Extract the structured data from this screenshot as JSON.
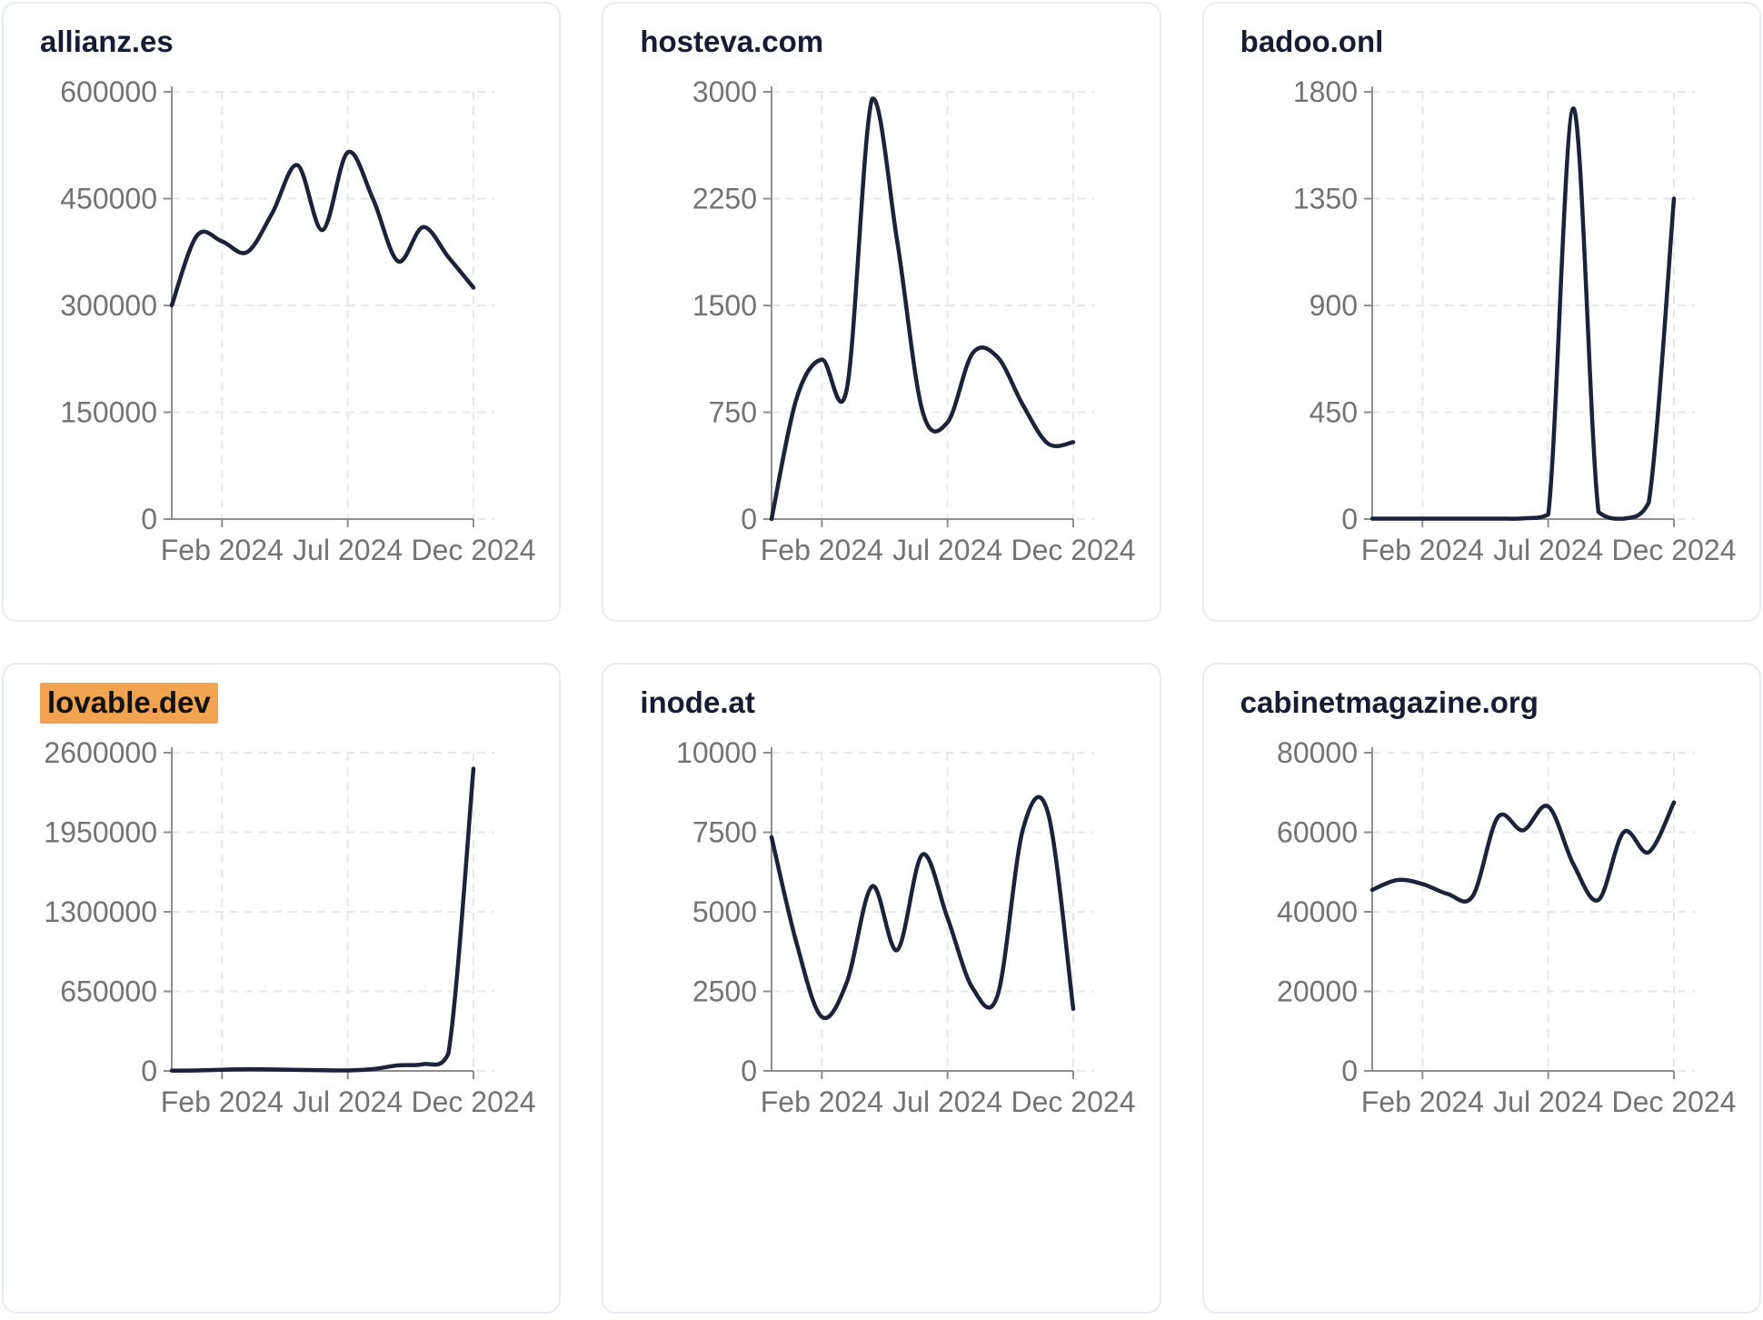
{
  "page": {
    "background": "#ffffff",
    "layout": "3x2 grid of domain traffic cards"
  },
  "styles": {
    "line_color": "#1c2237",
    "title_color": "#171c33",
    "axis_color": "#8f8f8f",
    "tick_label_color": "#737373",
    "grid_color": "#e7e7e7",
    "card_border": "#e9ebf2",
    "highlight_bg": "#f0a351",
    "highlight_text": "#111111"
  },
  "x_months": [
    "Dec 2023",
    "Jan 2024",
    "Feb 2024",
    "Mar 2024",
    "Apr 2024",
    "May 2024",
    "Jun 2024",
    "Jul 2024",
    "Aug 2024",
    "Sep 2024",
    "Oct 2024",
    "Nov 2024",
    "Dec 2024"
  ],
  "chart_data": [
    {
      "type": "line",
      "domain": "allianz.es",
      "highlighted": false,
      "title": "allianz.es",
      "x": [
        "Dec 2023",
        "Jan 2024",
        "Feb 2024",
        "Mar 2024",
        "Apr 2024",
        "May 2024",
        "Jun 2024",
        "Jul 2024",
        "Aug 2024",
        "Sep 2024",
        "Oct 2024",
        "Nov 2024",
        "Dec 2024"
      ],
      "values": [
        300000,
        398000,
        390000,
        375000,
        430000,
        497000,
        406000,
        515000,
        450000,
        362000,
        410000,
        368000,
        325000
      ],
      "y_ticks": [
        0,
        150000,
        300000,
        450000,
        600000
      ],
      "ylim": [
        0,
        600000
      ],
      "x_ticks": [
        {
          "month": 2,
          "label": "Feb 2024"
        },
        {
          "month": 7,
          "label": "Jul 2024"
        },
        {
          "month": 12,
          "label": "Dec 2024"
        }
      ],
      "grid": "dashed"
    },
    {
      "type": "line",
      "domain": "hosteva.com",
      "highlighted": false,
      "title": "hosteva.com",
      "x": [
        "Dec 2023",
        "Jan 2024",
        "Feb 2024",
        "Mar 2024",
        "Apr 2024",
        "May 2024",
        "Jun 2024",
        "Jul 2024",
        "Aug 2024",
        "Sep 2024",
        "Oct 2024",
        "Nov 2024",
        "Dec 2024"
      ],
      "values": [
        0,
        850,
        1120,
        920,
        2950,
        1950,
        760,
        680,
        1165,
        1135,
        800,
        530,
        540
      ],
      "y_ticks": [
        0,
        750,
        1500,
        2250,
        3000
      ],
      "ylim": [
        0,
        3000
      ],
      "x_ticks": [
        {
          "month": 2,
          "label": "Feb 2024"
        },
        {
          "month": 7,
          "label": "Jul 2024"
        },
        {
          "month": 12,
          "label": "Dec 2024"
        }
      ],
      "grid": "dashed"
    },
    {
      "type": "line",
      "domain": "badoo.onl",
      "highlighted": false,
      "title": "badoo.onl",
      "x": [
        "Dec 2023",
        "Jan 2024",
        "Feb 2024",
        "Mar 2024",
        "Apr 2024",
        "May 2024",
        "Jun 2024",
        "Jul 2024",
        "Aug 2024",
        "Sep 2024",
        "Oct 2024",
        "Nov 2024",
        "Dec 2024"
      ],
      "values": [
        2,
        2,
        2,
        2,
        2,
        2,
        3,
        20,
        1730,
        30,
        2,
        70,
        1350
      ],
      "y_ticks": [
        0,
        450,
        900,
        1350,
        1800
      ],
      "ylim": [
        0,
        1800
      ],
      "x_ticks": [
        {
          "month": 2,
          "label": "Feb 2024"
        },
        {
          "month": 7,
          "label": "Jul 2024"
        },
        {
          "month": 12,
          "label": "Dec 2024"
        }
      ],
      "grid": "dashed"
    },
    {
      "type": "line",
      "domain": "lovable.dev",
      "highlighted": true,
      "title": "lovable.dev",
      "x": [
        "Dec 2023",
        "Jan 2024",
        "Feb 2024",
        "Mar 2024",
        "Apr 2024",
        "May 2024",
        "Jun 2024",
        "Jul 2024",
        "Aug 2024",
        "Sep 2024",
        "Oct 2024",
        "Nov 2024",
        "Dec 2024"
      ],
      "values": [
        2000,
        4000,
        10000,
        14000,
        12000,
        8000,
        5000,
        4000,
        15000,
        45000,
        55000,
        140000,
        2470000
      ],
      "y_ticks": [
        0,
        650000,
        1300000,
        1950000,
        2600000
      ],
      "ylim": [
        0,
        2600000
      ],
      "x_ticks": [
        {
          "month": 2,
          "label": "Feb 2024"
        },
        {
          "month": 7,
          "label": "Jul 2024"
        },
        {
          "month": 12,
          "label": "Dec 2024"
        }
      ],
      "grid": "dashed"
    },
    {
      "type": "line",
      "domain": "inode.at",
      "highlighted": false,
      "title": "inode.at",
      "x": [
        "Dec 2023",
        "Jan 2024",
        "Feb 2024",
        "Mar 2024",
        "Apr 2024",
        "May 2024",
        "Jun 2024",
        "Jul 2024",
        "Aug 2024",
        "Sep 2024",
        "Oct 2024",
        "Nov 2024",
        "Dec 2024"
      ],
      "values": [
        7350,
        4000,
        1700,
        2800,
        5800,
        3800,
        6800,
        4800,
        2600,
        2400,
        7600,
        8100,
        1950
      ],
      "y_ticks": [
        0,
        2500,
        5000,
        7500,
        10000
      ],
      "ylim": [
        0,
        10000
      ],
      "x_ticks": [
        {
          "month": 2,
          "label": "Feb 2024"
        },
        {
          "month": 7,
          "label": "Jul 2024"
        },
        {
          "month": 12,
          "label": "Dec 2024"
        }
      ],
      "grid": "dashed"
    },
    {
      "type": "line",
      "domain": "cabinetmagazine.org",
      "highlighted": false,
      "title": "cabinetmagazine.org",
      "x": [
        "Dec 2023",
        "Jan 2024",
        "Feb 2024",
        "Mar 2024",
        "Apr 2024",
        "May 2024",
        "Jun 2024",
        "Jul 2024",
        "Aug 2024",
        "Sep 2024",
        "Oct 2024",
        "Nov 2024",
        "Dec 2024"
      ],
      "values": [
        45500,
        48000,
        47000,
        44500,
        44000,
        63800,
        60500,
        66500,
        52000,
        43000,
        60000,
        55000,
        67500
      ],
      "y_ticks": [
        0,
        20000,
        40000,
        60000,
        80000
      ],
      "ylim": [
        0,
        80000
      ],
      "x_ticks": [
        {
          "month": 2,
          "label": "Feb 2024"
        },
        {
          "month": 7,
          "label": "Jul 2024"
        },
        {
          "month": 12,
          "label": "Dec 2024"
        }
      ],
      "grid": "dashed"
    }
  ]
}
